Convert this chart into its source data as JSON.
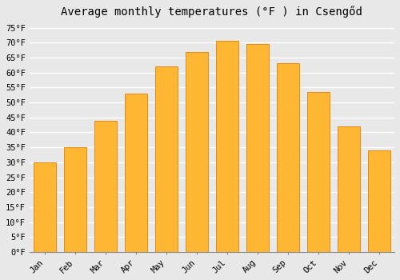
{
  "title": "Average monthly temperatures (°F ) in Csengőd",
  "months": [
    "Jan",
    "Feb",
    "Mar",
    "Apr",
    "May",
    "Jun",
    "Jul",
    "Aug",
    "Sep",
    "Oct",
    "Nov",
    "Dec"
  ],
  "values": [
    30,
    35,
    44,
    53,
    62,
    67,
    70.5,
    69.5,
    63,
    53.5,
    42,
    34
  ],
  "bar_color_light": "#FFB733",
  "bar_color_dark": "#FFA000",
  "bar_edge_color": "#E08000",
  "ylim": [
    0,
    77
  ],
  "yticks": [
    0,
    5,
    10,
    15,
    20,
    25,
    30,
    35,
    40,
    45,
    50,
    55,
    60,
    65,
    70,
    75
  ],
  "ytick_labels": [
    "0°F",
    "5°F",
    "10°F",
    "15°F",
    "20°F",
    "25°F",
    "30°F",
    "35°F",
    "40°F",
    "45°F",
    "50°F",
    "55°F",
    "60°F",
    "65°F",
    "70°F",
    "75°F"
  ],
  "background_color": "#e8e8e8",
  "grid_color": "#ffffff",
  "title_fontsize": 10,
  "tick_fontsize": 7.5,
  "font_family": "monospace"
}
